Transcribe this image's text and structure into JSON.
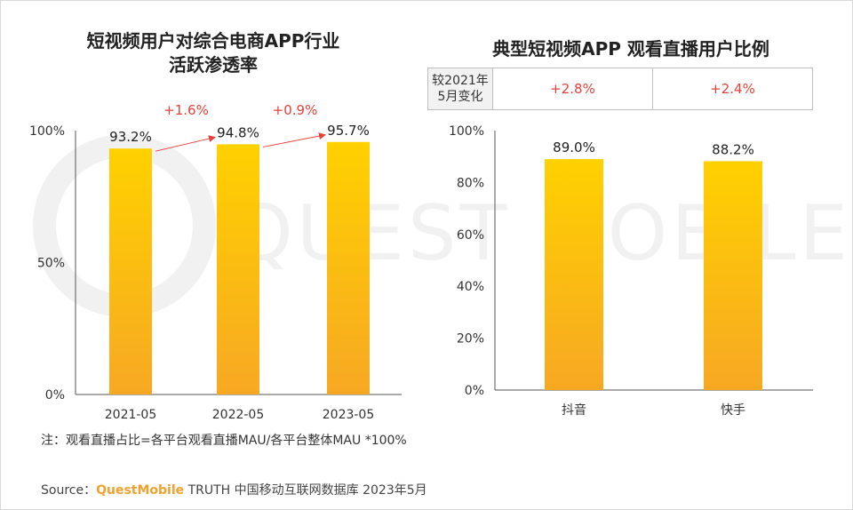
{
  "watermark_text": "QUEST MOBILE",
  "colors": {
    "bar_top": "#ffd100",
    "bar_bottom": "#f7a823",
    "accent_red": "#e8413c",
    "axis": "#555555",
    "brand": "#f0a22e"
  },
  "chart_data": [
    {
      "type": "bar",
      "title": "短视频用户对综合电商APP行业活跃渗透率",
      "title_lines": [
        "短视频用户对综合电商APP行业",
        "活跃渗透率"
      ],
      "categories": [
        "2021-05",
        "2022-05",
        "2023-05"
      ],
      "values": [
        93.2,
        94.8,
        95.7
      ],
      "value_labels": [
        "93.2%",
        "94.8%",
        "95.7%"
      ],
      "ylim": [
        0,
        100
      ],
      "y_ticks": [
        {
          "value": 0,
          "label": "0%"
        },
        {
          "value": 50,
          "label": "50%"
        },
        {
          "value": 100,
          "label": "100%"
        }
      ],
      "changes": [
        "+1.6%",
        "+0.9%"
      ],
      "grid": false
    },
    {
      "type": "bar",
      "title": "典型短视频APP 观看直播用户比例",
      "categories": [
        "抖音",
        "快手"
      ],
      "values": [
        89.0,
        88.2
      ],
      "value_labels": [
        "89.0%",
        "88.2%"
      ],
      "ylim": [
        0,
        100
      ],
      "y_ticks": [
        {
          "value": 0,
          "label": "0%"
        },
        {
          "value": 20,
          "label": "20%"
        },
        {
          "value": 40,
          "label": "40%"
        },
        {
          "value": 60,
          "label": "60%"
        },
        {
          "value": 80,
          "label": "80%"
        },
        {
          "value": 100,
          "label": "100%"
        }
      ],
      "grid": false
    }
  ],
  "table": {
    "header_line1": "较2021年",
    "header_line2": "5月变化",
    "values": [
      "+2.8%",
      "+2.4%"
    ]
  },
  "note": "注：观看直播占比=各平台观看直播MAU/各平台整体MAU *100%",
  "source": {
    "prefix": "Source：",
    "brand": "QuestMobile",
    "suffix": " TRUTH 中国移动互联网数据库 2023年5月"
  }
}
